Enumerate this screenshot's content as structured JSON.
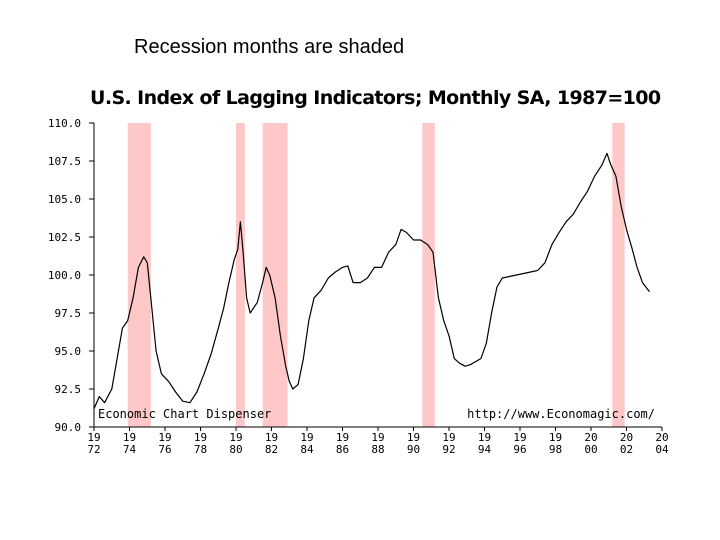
{
  "slide": {
    "caption": "Recession months are shaded"
  },
  "chart_data": {
    "type": "line",
    "title": "U.S. Index of Lagging Indicators; Monthly SA, 1987=100",
    "xlabel": "",
    "ylabel": "",
    "ylim": [
      90.0,
      110.0
    ],
    "xlim": [
      1972.0,
      2004.0
    ],
    "y_ticks": [
      "110.0",
      "107.5",
      "105.0",
      "102.5",
      "100.0",
      "97.5",
      "95.0",
      "92.5",
      "90.0"
    ],
    "x_ticks": [
      {
        "top": "19",
        "bottom": "72",
        "year": 1972
      },
      {
        "top": "19",
        "bottom": "74",
        "year": 1974
      },
      {
        "top": "19",
        "bottom": "76",
        "year": 1976
      },
      {
        "top": "19",
        "bottom": "78",
        "year": 1978
      },
      {
        "top": "19",
        "bottom": "80",
        "year": 1980
      },
      {
        "top": "19",
        "bottom": "82",
        "year": 1982
      },
      {
        "top": "19",
        "bottom": "84",
        "year": 1984
      },
      {
        "top": "19",
        "bottom": "86",
        "year": 1986
      },
      {
        "top": "19",
        "bottom": "88",
        "year": 1988
      },
      {
        "top": "19",
        "bottom": "90",
        "year": 1990
      },
      {
        "top": "19",
        "bottom": "92",
        "year": 1992
      },
      {
        "top": "19",
        "bottom": "94",
        "year": 1994
      },
      {
        "top": "19",
        "bottom": "96",
        "year": 1996
      },
      {
        "top": "19",
        "bottom": "98",
        "year": 1998
      },
      {
        "top": "20",
        "bottom": "00",
        "year": 2000
      },
      {
        "top": "20",
        "bottom": "02",
        "year": 2002
      },
      {
        "top": "20",
        "bottom": "04",
        "year": 2004
      }
    ],
    "recessions": [
      {
        "start": 1973.9,
        "end": 1975.2
      },
      {
        "start": 1980.0,
        "end": 1980.5
      },
      {
        "start": 1981.5,
        "end": 1982.9
      },
      {
        "start": 1990.5,
        "end": 1991.2
      },
      {
        "start": 2001.2,
        "end": 2001.9
      }
    ],
    "recession_color": "#ffc8c8",
    "line_color": "#000000",
    "annotations": {
      "left": "Economic Chart Dispenser",
      "right": "http://www.Economagic.com/"
    },
    "series": [
      {
        "x": [
          1972.0,
          1972.3,
          1972.6,
          1973.0,
          1973.3,
          1973.6,
          1973.9,
          1974.2,
          1974.5,
          1974.8,
          1975.0,
          1975.2,
          1975.5,
          1975.8,
          1976.2,
          1976.6,
          1977.0,
          1977.4,
          1977.8,
          1978.2,
          1978.6,
          1979.0,
          1979.3,
          1979.6,
          1979.9,
          1980.1,
          1980.25,
          1980.4,
          1980.6,
          1980.8,
          1981.2,
          1981.5,
          1981.7,
          1981.9,
          1982.2,
          1982.5,
          1982.8,
          1983.0,
          1983.2,
          1983.5,
          1983.8,
          1984.1,
          1984.4,
          1984.8,
          1985.2,
          1985.6,
          1986.0,
          1986.3,
          1986.6,
          1987.0,
          1987.4,
          1987.8,
          1988.2,
          1988.6,
          1989.0,
          1989.3,
          1989.6,
          1990.0,
          1990.4,
          1990.8,
          1991.1,
          1991.4,
          1991.7,
          1992.0,
          1992.3,
          1992.6,
          1992.9,
          1993.2,
          1993.5,
          1993.8,
          1994.1,
          1994.4,
          1994.7,
          1995.0,
          1995.4,
          1995.8,
          1996.2,
          1996.6,
          1997.0,
          1997.4,
          1997.8,
          1998.2,
          1998.6,
          1999.0,
          1999.4,
          1999.8,
          2000.2,
          2000.6,
          2000.9,
          2001.1,
          2001.4,
          2001.7,
          2002.0,
          2002.3,
          2002.6,
          2002.9,
          2003.1,
          2003.3
        ],
        "y": [
          91.2,
          92.0,
          91.6,
          92.5,
          94.5,
          96.5,
          97.0,
          98.5,
          100.5,
          101.2,
          100.8,
          98.5,
          95.0,
          93.5,
          93.0,
          92.3,
          91.7,
          91.6,
          92.3,
          93.5,
          94.8,
          96.5,
          97.8,
          99.5,
          101.0,
          101.7,
          103.5,
          101.5,
          98.5,
          97.5,
          98.2,
          99.5,
          100.5,
          100.0,
          98.5,
          96.0,
          94.0,
          93.0,
          92.5,
          92.8,
          94.5,
          97.0,
          98.5,
          99.0,
          99.8,
          100.2,
          100.5,
          100.6,
          99.5,
          99.5,
          99.8,
          100.5,
          100.5,
          101.5,
          102.0,
          103.0,
          102.8,
          102.3,
          102.3,
          102.0,
          101.5,
          98.5,
          97.0,
          96.0,
          94.5,
          94.2,
          94.0,
          94.1,
          94.3,
          94.5,
          95.5,
          97.5,
          99.2,
          99.8,
          99.9,
          100.0,
          100.1,
          100.2,
          100.3,
          100.8,
          102.0,
          102.8,
          103.5,
          104.0,
          104.8,
          105.5,
          106.5,
          107.2,
          108.0,
          107.3,
          106.5,
          104.5,
          103.0,
          101.8,
          100.5,
          99.5,
          99.2,
          98.9
        ]
      }
    ]
  }
}
